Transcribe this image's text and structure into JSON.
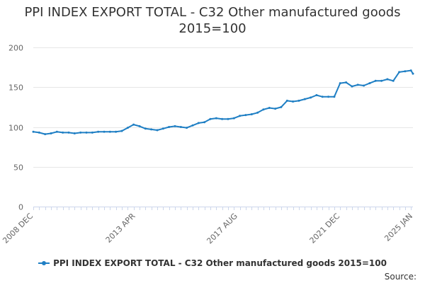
{
  "chart_data": {
    "type": "line",
    "title": "PPI INDEX EXPORT TOTAL - C32 Other manufactured goods",
    "subtitle": "2015=100",
    "xlabel": "",
    "ylabel": "",
    "ylim": [
      0,
      200
    ],
    "yticks": [
      0,
      50,
      100,
      150,
      200
    ],
    "xtick_labels": [
      "2008 DEC",
      "2013 APR",
      "2017 AUG",
      "2021 DEC",
      "2025 JAN"
    ],
    "grid": true,
    "legend_position": "bottom",
    "series": [
      {
        "name": "PPI INDEX EXPORT TOTAL - C32 Other manufactured goods 2015=100",
        "color": "#1f7fc4",
        "x": [
          "2008-12",
          "2009-03",
          "2009-06",
          "2009-09",
          "2009-12",
          "2010-03",
          "2010-06",
          "2010-09",
          "2010-12",
          "2011-03",
          "2011-06",
          "2011-09",
          "2011-12",
          "2012-03",
          "2012-06",
          "2012-09",
          "2012-12",
          "2013-03",
          "2013-06",
          "2013-09",
          "2013-12",
          "2014-03",
          "2014-06",
          "2014-09",
          "2014-12",
          "2015-03",
          "2015-06",
          "2015-09",
          "2015-12",
          "2016-03",
          "2016-06",
          "2016-09",
          "2016-12",
          "2017-03",
          "2017-06",
          "2017-09",
          "2017-12",
          "2018-03",
          "2018-06",
          "2018-09",
          "2018-12",
          "2019-03",
          "2019-06",
          "2019-09",
          "2019-12",
          "2020-03",
          "2020-06",
          "2020-09",
          "2020-12",
          "2021-03",
          "2021-06",
          "2021-09",
          "2021-12",
          "2022-03",
          "2022-06",
          "2022-09",
          "2022-12",
          "2023-03",
          "2023-06",
          "2023-09",
          "2023-12",
          "2024-03",
          "2024-06",
          "2024-09",
          "2024-12",
          "2025-01"
        ],
        "values": [
          94,
          93,
          91,
          92,
          94,
          93,
          93,
          92,
          93,
          93,
          93,
          94,
          94,
          94,
          94,
          95,
          99,
          103,
          101,
          98,
          97,
          96,
          98,
          100,
          101,
          100,
          99,
          102,
          105,
          106,
          110,
          111,
          110,
          110,
          111,
          114,
          115,
          116,
          118,
          122,
          124,
          123,
          125,
          133,
          132,
          133,
          135,
          137,
          140,
          138,
          138,
          138,
          155,
          156,
          151,
          153,
          152,
          155,
          158,
          158,
          160,
          158,
          169,
          170,
          171,
          167
        ]
      }
    ]
  },
  "source_label": "Source:"
}
